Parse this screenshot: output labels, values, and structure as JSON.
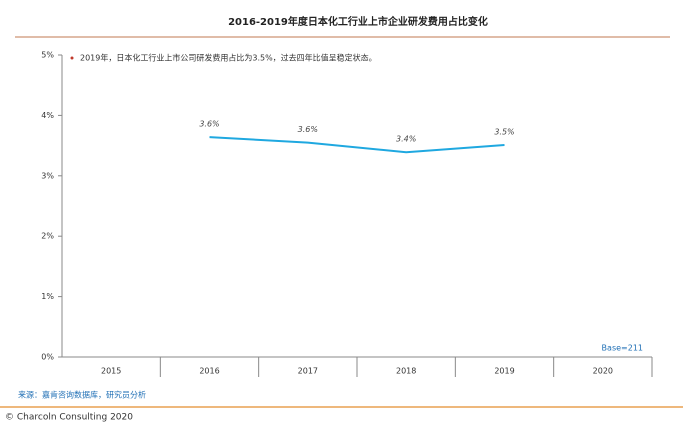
{
  "chart_data": {
    "type": "line",
    "title": "2016-2019年度日本化工行业上市企业研发费用占比变化",
    "note": "2019年，日本化工行业上市公司研发费用占比为3.5%，过去四年比值呈稳定状态。",
    "categories": [
      "2015",
      "2016",
      "2017",
      "2018",
      "2019",
      "2020"
    ],
    "series": [
      {
        "color": "#1fa8e0",
        "values": [
          null,
          3.64,
          3.55,
          3.39,
          3.51,
          null
        ],
        "value_labels": [
          null,
          "3.6%",
          "3.6%",
          "3.4%",
          "3.5%",
          null
        ]
      }
    ],
    "ylim": [
      0,
      5
    ],
    "yticks": [
      {
        "value": 0,
        "label": "0%"
      },
      {
        "value": 1,
        "label": "1%"
      },
      {
        "value": 2,
        "label": "2%"
      },
      {
        "value": 3,
        "label": "3%"
      },
      {
        "value": 4,
        "label": "4%"
      },
      {
        "value": 5,
        "label": "5%"
      }
    ],
    "base": "Base=211",
    "source": "来源：嘉肯咨询数据库，研究员分析",
    "copyright": "© Charcoln Consulting 2020"
  }
}
